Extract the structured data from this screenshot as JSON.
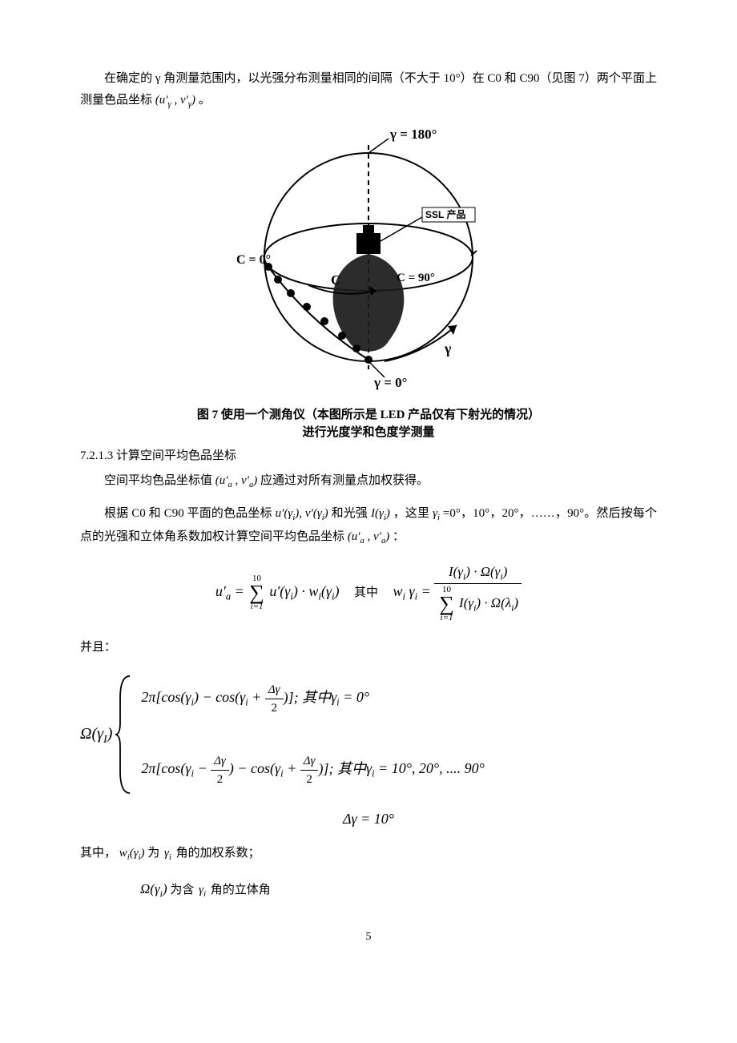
{
  "para1_pre": "在确定的 γ 角测量范围内，以光强分布测量相同的间隔（不大于 10°）在 C0 和 C90（见图 7）两个平面上测量色品坐标",
  "para1_formula": "(u′<sub>γ</sub> , v′<sub>γ</sub>)",
  "para1_post": " 。",
  "figure": {
    "caption_line1": "图 7  使用一个测角仪（本图所示是 LED 产品仅有下射光的情况）",
    "caption_line2": "进行光度学和色度学测量",
    "labels": {
      "top": "γ = 180°",
      "ssl": "SSL 产品",
      "c0": "C = 0°",
      "c_arrow": "C",
      "c90": "C = 90°",
      "gamma_arrow": "γ",
      "bottom": "γ = 0°"
    },
    "colors": {
      "line": "#000000",
      "fill_plume": "#1a1a1a",
      "bg": "#ffffff"
    }
  },
  "section_7213": "7.2.1.3 计算空间平均色品坐标",
  "para2_pre": "空间平均色品坐标值",
  "para2_f": "(u′<sub>a</sub> , v′<sub>a</sub>)",
  "para2_post": " 应通过对所有测量点加权获得。",
  "para3_a": "根据 C0 和 C90 平面的色品坐标",
  "para3_f1": "u′(γ<sub>i</sub>), v′(γ<sub>i</sub>)",
  "para3_b": " 和光强 ",
  "para3_f2": "I(γ<sub>i</sub>)",
  "para3_c": "，这里 ",
  "para3_f3": "γ<sub>i</sub>",
  "para3_d": " =0°，10°，20°，……，90°。然后按每个点的光强和立体角系数加权计算空间平均色品坐标",
  "para3_f4": "(u′<sub>a</sub> , v′<sub>a</sub>)",
  "para3_e": " ：",
  "eq1": {
    "lhs": "u′<sub>a</sub> =",
    "sum_top": "10",
    "sum_bot": "i=1",
    "term": "u′(γ<sub>i</sub>) · w<sub>i</sub>(γ<sub>i</sub>)",
    "mid": "其中",
    "rhs_lhs": "w<sub>i</sub> γ<sub>i</sub> =",
    "num": "I(γ<sub>i</sub>) · Ω(γ<sub>i</sub>)",
    "den_sum_top": "10",
    "den_sum_bot": "i=1",
    "den_term": "I(γ<sub>i</sub>) · Ω(λ<sub>i</sub>)"
  },
  "and_label": "并且：",
  "brace": {
    "lhs": "Ω(γ<sub>I</sub>)",
    "row1_a": "2π[cos(γ<sub>i</sub>) − cos(γ<sub>i</sub> + ",
    "row1_frac_n": "Δγ",
    "row1_frac_d": "2",
    "row1_b": ")]; ",
    "row1_cn": "其中",
    "row1_c": "γ<sub>i</sub> = 0°",
    "row2_a": "2π[cos(γ<sub>i</sub> − ",
    "row2_b": ") − cos(γ<sub>i</sub> + ",
    "row2_c": ")]; ",
    "row2_cn": "其中",
    "row2_d": "γ<sub>i</sub> = 10°, 20°, .... 90°"
  },
  "delta_line": "Δγ = 10°",
  "defs": {
    "d1_a": "其中，",
    "d1_f": "w<sub>i</sub>(γ<sub>i</sub>)",
    "d1_b": "为",
    "d1_g": "γ<sub>i</sub>",
    "d1_c": "角的加权系数；",
    "d2_f": "Ω(γ<sub>i</sub>)",
    "d2_a": " 为含 ",
    "d2_g": "γ<sub>i</sub>",
    "d2_b": "角的立体角"
  },
  "page_number": "5"
}
